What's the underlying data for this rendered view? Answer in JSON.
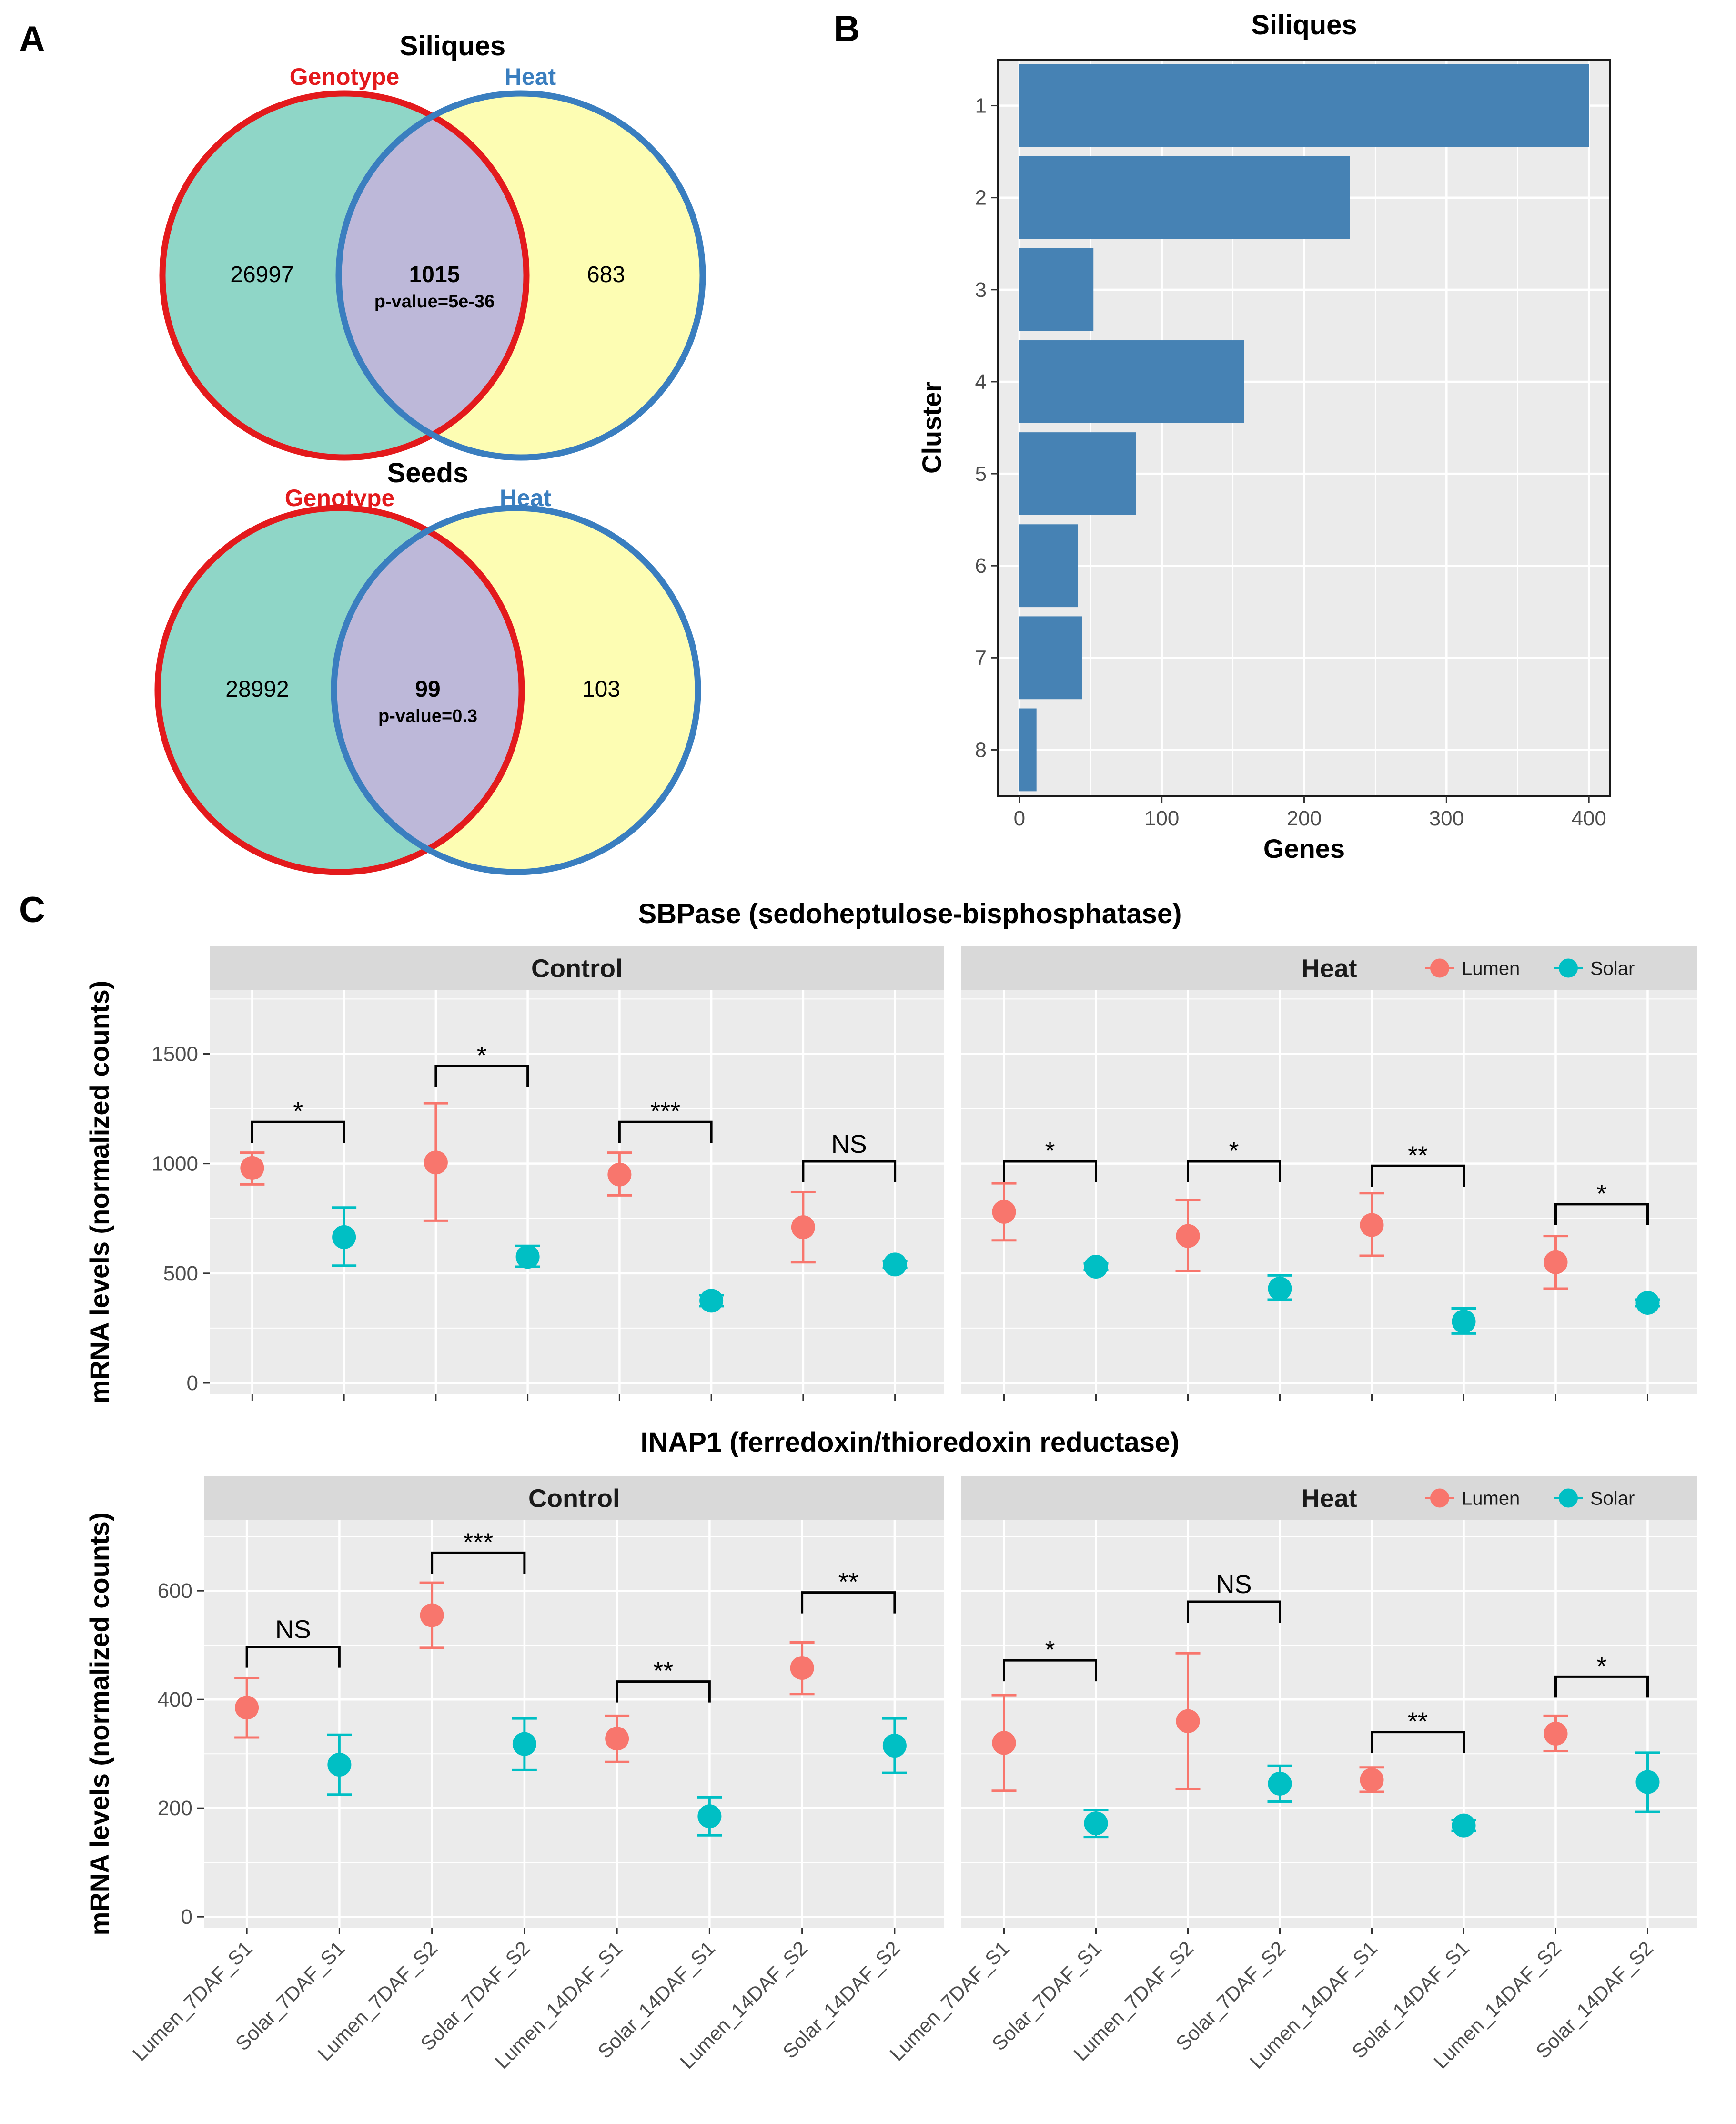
{
  "panel_labels": [
    "A",
    "B",
    "C"
  ],
  "venns": [
    {
      "title": "Siliques",
      "set_a": "Genotype",
      "set_b": "Heat",
      "only_a": "26997",
      "both": "1015",
      "p_value": "p-value=5e-36",
      "only_b": "683"
    },
    {
      "title": "Seeds",
      "set_a": "Genotype",
      "set_b": "Heat",
      "only_a": "28992",
      "both": "99",
      "p_value": "p-value=0.3",
      "only_b": "103"
    }
  ],
  "colors": {
    "genotype": "#e31a1c",
    "heat": "#3a7ebf",
    "venn_a_fill": "#8fd6c7",
    "venn_b_fill": "#fdfdb3",
    "venn_overlap": "#bdb8d9",
    "bar": "#4682b4",
    "panel_bg": "#ebebeb",
    "strip_bg": "#d9d9d9",
    "lumen": "#f8766d",
    "solar": "#00bfc4"
  },
  "chart_data": [
    {
      "type": "bar",
      "title": "Siliques",
      "orientation": "horizontal",
      "categories": [
        "1",
        "2",
        "3",
        "4",
        "5",
        "6",
        "7",
        "8"
      ],
      "values": [
        400,
        232,
        52,
        158,
        82,
        41,
        44,
        12
      ],
      "xlabel": "Genes",
      "ylabel": "Cluster",
      "xlim": [
        -15,
        415
      ],
      "xticks": [
        0,
        100,
        200,
        300,
        400
      ]
    },
    {
      "type": "scatter",
      "title": "SBPase (sedoheptulose-bisphosphatase)",
      "ylabel": "mRNA levels (normalized counts)",
      "ylim": [
        -50,
        1790
      ],
      "yticks": [
        0,
        500,
        1000,
        1500
      ],
      "categories": [
        "Lumen_7DAF_S1",
        "Solar_7DAF_S1",
        "Lumen_7DAF_S2",
        "Solar_7DAF_S2",
        "Lumen_14DAF_S1",
        "Solar_14DAF_S1",
        "Lumen_14DAF_S2",
        "Solar_14DAF_S2"
      ],
      "legend": [
        "Lumen",
        "Solar"
      ],
      "facets": [
        {
          "name": "Control",
          "points": [
            {
              "mean": 980,
              "low": 905,
              "high": 1050
            },
            {
              "mean": 665,
              "low": 535,
              "high": 800
            },
            {
              "mean": 1005,
              "low": 740,
              "high": 1275
            },
            {
              "mean": 575,
              "low": 530,
              "high": 625
            },
            {
              "mean": 950,
              "low": 855,
              "high": 1050
            },
            {
              "mean": 375,
              "low": 350,
              "high": 400
            },
            {
              "mean": 710,
              "low": 550,
              "high": 870
            },
            {
              "mean": 540,
              "low": 525,
              "high": 555
            }
          ],
          "sig": [
            {
              "label": "*",
              "pair": [
                0,
                1
              ],
              "y": 1190
            },
            {
              "label": "*",
              "pair": [
                2,
                3
              ],
              "y": 1445
            },
            {
              "label": "***",
              "pair": [
                4,
                5
              ],
              "y": 1190
            },
            {
              "label": "NS",
              "pair": [
                6,
                7
              ],
              "y": 1010
            }
          ]
        },
        {
          "name": "Heat",
          "points": [
            {
              "mean": 780,
              "low": 650,
              "high": 910
            },
            {
              "mean": 530,
              "low": 515,
              "high": 545
            },
            {
              "mean": 670,
              "low": 510,
              "high": 835
            },
            {
              "mean": 430,
              "low": 380,
              "high": 490
            },
            {
              "mean": 720,
              "low": 580,
              "high": 865
            },
            {
              "mean": 280,
              "low": 225,
              "high": 340
            },
            {
              "mean": 550,
              "low": 430,
              "high": 670
            },
            {
              "mean": 365,
              "low": 350,
              "high": 380
            }
          ],
          "sig": [
            {
              "label": "*",
              "pair": [
                0,
                1
              ],
              "y": 1010
            },
            {
              "label": "*",
              "pair": [
                2,
                3
              ],
              "y": 1010
            },
            {
              "label": "**",
              "pair": [
                4,
                5
              ],
              "y": 990
            },
            {
              "label": "*",
              "pair": [
                6,
                7
              ],
              "y": 815
            }
          ]
        }
      ]
    },
    {
      "type": "scatter",
      "title": "INAP1 (ferredoxin/thioredoxin reductase)",
      "ylabel": "mRNA levels (normalized counts)",
      "ylim": [
        -20,
        730
      ],
      "yticks": [
        0,
        200,
        400,
        600
      ],
      "categories": [
        "Lumen_7DAF_S1",
        "Solar_7DAF_S1",
        "Lumen_7DAF_S2",
        "Solar_7DAF_S2",
        "Lumen_14DAF_S1",
        "Solar_14DAF_S1",
        "Lumen_14DAF_S2",
        "Solar_14DAF_S2"
      ],
      "legend": [
        "Lumen",
        "Solar"
      ],
      "facets": [
        {
          "name": "Control",
          "points": [
            {
              "mean": 385,
              "low": 330,
              "high": 440
            },
            {
              "mean": 280,
              "low": 225,
              "high": 335
            },
            {
              "mean": 555,
              "low": 495,
              "high": 615
            },
            {
              "mean": 318,
              "low": 270,
              "high": 365
            },
            {
              "mean": 328,
              "low": 285,
              "high": 370
            },
            {
              "mean": 185,
              "low": 150,
              "high": 220
            },
            {
              "mean": 458,
              "low": 410,
              "high": 505
            },
            {
              "mean": 315,
              "low": 265,
              "high": 365
            }
          ],
          "sig": [
            {
              "label": "NS",
              "pair": [
                0,
                1
              ],
              "y": 497
            },
            {
              "label": "***",
              "pair": [
                2,
                3
              ],
              "y": 670
            },
            {
              "label": "**",
              "pair": [
                4,
                5
              ],
              "y": 433
            },
            {
              "label": "**",
              "pair": [
                6,
                7
              ],
              "y": 597
            }
          ]
        },
        {
          "name": "Heat",
          "points": [
            {
              "mean": 320,
              "low": 232,
              "high": 408
            },
            {
              "mean": 172,
              "low": 147,
              "high": 197
            },
            {
              "mean": 360,
              "low": 235,
              "high": 485
            },
            {
              "mean": 245,
              "low": 212,
              "high": 278
            },
            {
              "mean": 252,
              "low": 230,
              "high": 275
            },
            {
              "mean": 168,
              "low": 158,
              "high": 178
            },
            {
              "mean": 337,
              "low": 305,
              "high": 370
            },
            {
              "mean": 248,
              "low": 193,
              "high": 302
            }
          ],
          "sig": [
            {
              "label": "*",
              "pair": [
                0,
                1
              ],
              "y": 472
            },
            {
              "label": "NS",
              "pair": [
                2,
                3
              ],
              "y": 580
            },
            {
              "label": "**",
              "pair": [
                4,
                5
              ],
              "y": 340
            },
            {
              "label": "*",
              "pair": [
                6,
                7
              ],
              "y": 442
            }
          ]
        }
      ]
    }
  ]
}
